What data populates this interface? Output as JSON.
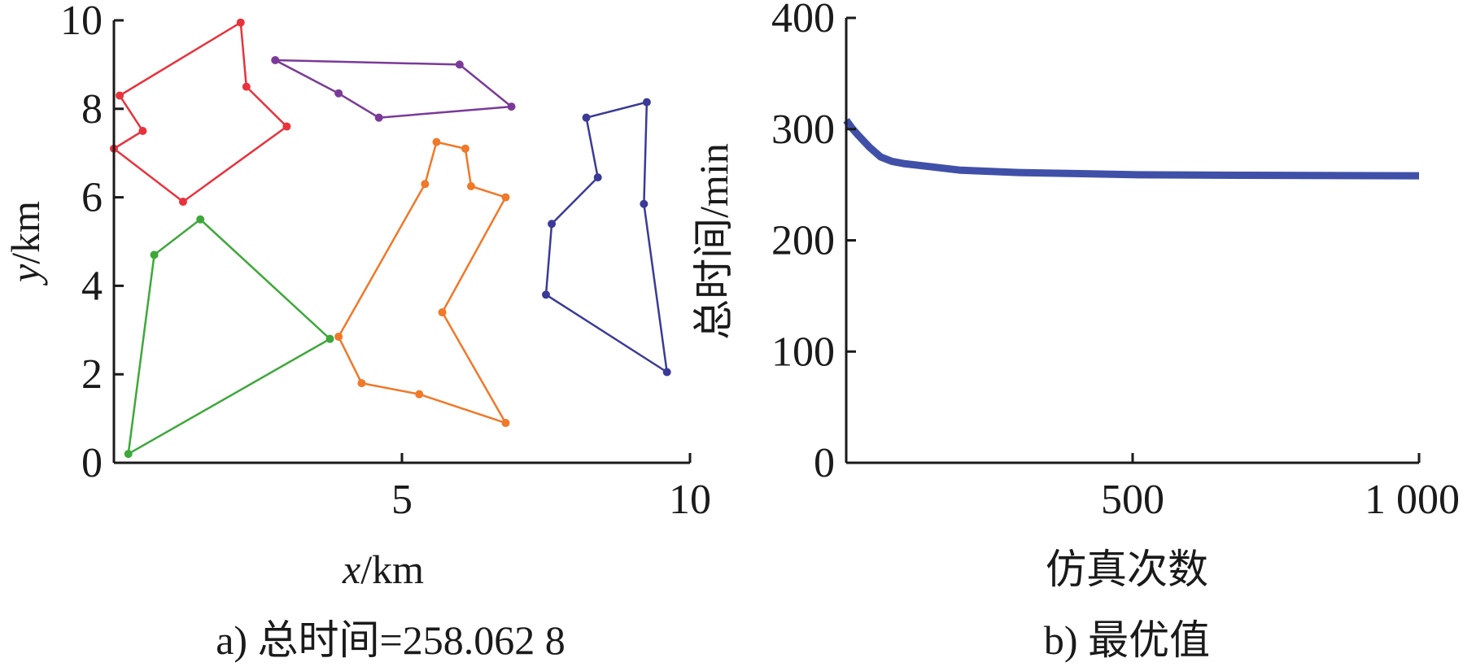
{
  "panels": {
    "a": {
      "caption": "a) 总时间=258.062 8"
    },
    "b": {
      "caption": "b) 最优值"
    }
  },
  "chart_data": [
    {
      "type": "line",
      "xlabel_var": "x",
      "xlabel_unit": "/km",
      "ylabel_var": "y",
      "ylabel_unit": "/km",
      "xlim": [
        0,
        10
      ],
      "ylim": [
        0,
        10
      ],
      "x_ticks": [
        "5",
        "10"
      ],
      "y_ticks": [
        "0",
        "2",
        "4",
        "6",
        "8",
        "10"
      ],
      "grid": false,
      "series": [
        {
          "color": "#e8323c",
          "points": [
            [
              0.1,
              8.3
            ],
            [
              0.5,
              7.5
            ],
            [
              0,
              7.1
            ],
            [
              1.2,
              5.9
            ],
            [
              3.0,
              7.6
            ],
            [
              2.3,
              8.5
            ],
            [
              2.2,
              9.95
            ],
            [
              0.1,
              8.3
            ]
          ]
        },
        {
          "color": "#7a3a98",
          "points": [
            [
              2.8,
              9.1
            ],
            [
              3.9,
              8.35
            ],
            [
              4.6,
              7.8
            ],
            [
              6.9,
              8.05
            ],
            [
              6.0,
              9.0
            ],
            [
              2.8,
              9.1
            ]
          ]
        },
        {
          "color": "#f07828",
          "points": [
            [
              3.9,
              2.85
            ],
            [
              4.3,
              1.8
            ],
            [
              5.3,
              1.55
            ],
            [
              6.8,
              0.9
            ],
            [
              5.7,
              3.4
            ],
            [
              6.8,
              6.0
            ],
            [
              6.2,
              6.25
            ],
            [
              6.1,
              7.1
            ],
            [
              5.6,
              7.25
            ],
            [
              5.4,
              6.3
            ],
            [
              3.9,
              2.85
            ]
          ]
        },
        {
          "color": "#3da83a",
          "points": [
            [
              1.5,
              5.5
            ],
            [
              0.7,
              4.7
            ],
            [
              0.25,
              0.2
            ],
            [
              3.75,
              2.8
            ],
            [
              1.5,
              5.5
            ]
          ]
        },
        {
          "color": "#3a3a98",
          "points": [
            [
              9.6,
              2.05
            ],
            [
              9.2,
              5.85
            ],
            [
              9.25,
              8.15
            ],
            [
              8.2,
              7.8
            ],
            [
              8.4,
              6.45
            ],
            [
              7.6,
              5.4
            ],
            [
              7.5,
              3.8
            ],
            [
              9.6,
              2.05
            ]
          ]
        }
      ]
    },
    {
      "type": "line",
      "xlabel": "仿真次数",
      "ylabel": "总时间/min",
      "xlim": [
        0,
        1000
      ],
      "ylim": [
        0,
        400
      ],
      "x_ticks": [
        "500",
        "1 000"
      ],
      "y_ticks": [
        "0",
        "100",
        "200",
        "300",
        "400"
      ],
      "grid": false,
      "series": [
        {
          "color": "#4050a8",
          "x": [
            0,
            10,
            20,
            40,
            60,
            80,
            100,
            150,
            200,
            300,
            400,
            500,
            700,
            1000
          ],
          "y": [
            308,
            301,
            295,
            284,
            275,
            271,
            269,
            266,
            263,
            261,
            260,
            259,
            258.5,
            258.06
          ]
        }
      ]
    }
  ]
}
